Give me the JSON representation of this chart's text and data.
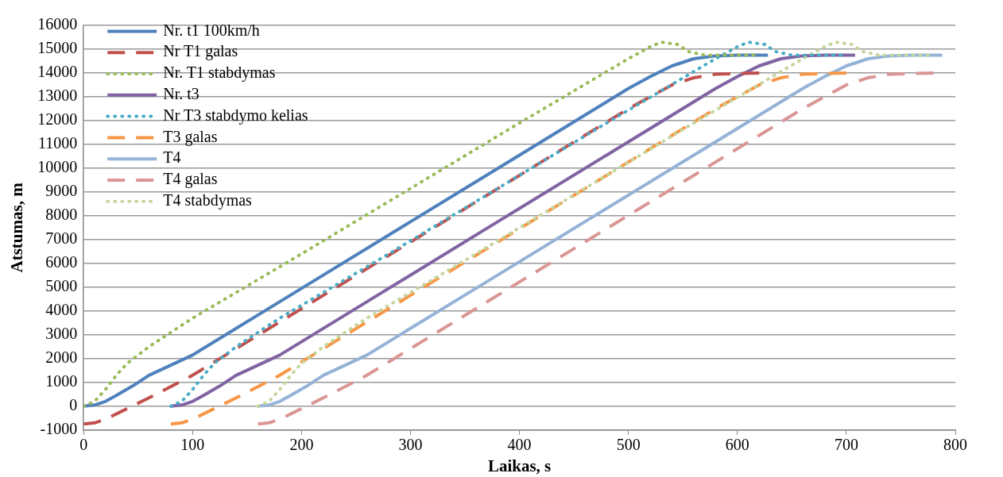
{
  "chart_data": {
    "type": "line",
    "xlabel": "Laikas, s",
    "ylabel": "Atstumas, m",
    "xlim": [
      0,
      800
    ],
    "xticks": [
      0,
      100,
      200,
      300,
      400,
      500,
      600,
      700,
      800
    ],
    "ylim": [
      -1000,
      16000
    ],
    "yticks": [
      -1000,
      0,
      1000,
      2000,
      3000,
      4000,
      5000,
      6000,
      7000,
      8000,
      9000,
      10000,
      11000,
      12000,
      13000,
      14000,
      15000,
      16000
    ],
    "grid": "y",
    "legend": "top left",
    "marker": "none",
    "series": [
      {
        "name": "Nr. t1 100km/h",
        "color": "#4f81bd",
        "line_style": "solid",
        "x": [
          0,
          10,
          20,
          30,
          45,
          60,
          100,
          200,
          300,
          400,
          500,
          520,
          540,
          560,
          580,
          600,
          628
        ],
        "values": [
          0,
          50,
          200,
          450,
          850,
          1300,
          2150,
          4950,
          7750,
          10550,
          13350,
          13850,
          14300,
          14600,
          14720,
          14750,
          14750
        ]
      },
      {
        "name": "Nr T1 galas",
        "color": "#c0504d",
        "line_style": "dashed",
        "x": [
          0,
          10,
          20,
          40,
          60,
          100,
          200,
          300,
          400,
          500,
          540,
          560,
          580,
          620
        ],
        "values": [
          -750,
          -700,
          -550,
          -100,
          350,
          1300,
          4100,
          6900,
          9700,
          12500,
          13500,
          13800,
          13950,
          14000
        ]
      },
      {
        "name": "Nr. T1 stabdymas",
        "color": "#9bbb59",
        "line_style": "dotted",
        "x": [
          0,
          10,
          20,
          30,
          40,
          60,
          80,
          100,
          200,
          300,
          400,
          500,
          520,
          530,
          545,
          555,
          570,
          615
        ],
        "values": [
          0,
          200,
          700,
          1300,
          1800,
          2500,
          3100,
          3700,
          6400,
          9150,
          11900,
          14600,
          15100,
          15300,
          15200,
          14900,
          14750,
          14750
        ]
      },
      {
        "name": "Nr. t3",
        "color": "#8064a2",
        "line_style": "solid",
        "x": [
          80,
          90,
          100,
          110,
          125,
          140,
          180,
          280,
          380,
          480,
          580,
          600,
          620,
          640,
          660,
          680,
          708
        ],
        "values": [
          0,
          50,
          200,
          450,
          850,
          1300,
          2150,
          4950,
          7750,
          10550,
          13350,
          13850,
          14300,
          14600,
          14720,
          14750,
          14750
        ]
      },
      {
        "name": "Nr T3 stabdymo kelias",
        "color": "#4bacc6",
        "line_style": "dotted",
        "x": [
          80,
          90,
          100,
          110,
          120,
          140,
          160,
          180,
          280,
          380,
          480,
          580,
          600,
          610,
          625,
          635,
          650,
          695
        ],
        "values": [
          0,
          200,
          700,
          1300,
          1800,
          2500,
          3100,
          3700,
          6400,
          9150,
          11900,
          14600,
          15100,
          15300,
          15200,
          14900,
          14750,
          14750
        ]
      },
      {
        "name": "T3 galas",
        "color": "#f79646",
        "line_style": "dashed",
        "x": [
          80,
          90,
          100,
          120,
          140,
          180,
          280,
          380,
          480,
          580,
          620,
          640,
          660,
          700
        ],
        "values": [
          -750,
          -700,
          -550,
          -100,
          350,
          1300,
          4100,
          6900,
          9700,
          12500,
          13500,
          13800,
          13950,
          14000
        ]
      },
      {
        "name": "T4",
        "color": "#95b3d7",
        "line_style": "solid",
        "x": [
          160,
          170,
          180,
          190,
          205,
          220,
          260,
          360,
          460,
          560,
          660,
          680,
          700,
          720,
          740,
          760,
          788
        ],
        "values": [
          0,
          50,
          200,
          450,
          850,
          1300,
          2150,
          4950,
          7750,
          10550,
          13350,
          13850,
          14300,
          14600,
          14720,
          14750,
          14750
        ]
      },
      {
        "name": "T4 galas",
        "color": "#d99694",
        "line_style": "dashed",
        "x": [
          160,
          170,
          180,
          200,
          220,
          260,
          360,
          460,
          560,
          660,
          700,
          720,
          740,
          780
        ],
        "values": [
          -750,
          -700,
          -550,
          -100,
          350,
          1300,
          4100,
          6900,
          9700,
          12500,
          13500,
          13800,
          13950,
          14000
        ]
      },
      {
        "name": "T4 stabdymas",
        "color": "#c3d69b",
        "line_style": "dotted",
        "x": [
          160,
          170,
          180,
          190,
          200,
          220,
          240,
          260,
          360,
          460,
          560,
          660,
          680,
          690,
          705,
          715,
          730,
          775
        ],
        "values": [
          0,
          200,
          700,
          1300,
          1800,
          2500,
          3100,
          3700,
          6400,
          9150,
          11900,
          14600,
          15100,
          15300,
          15200,
          14900,
          14750,
          14750
        ]
      }
    ]
  }
}
